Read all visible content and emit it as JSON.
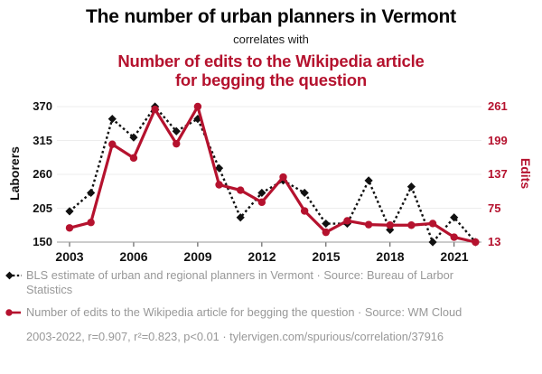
{
  "header": {
    "title": "The number of urban planners in Vermont",
    "connector": "correlates with",
    "subtitle": "Number of edits to the Wikipedia article for begging the question"
  },
  "colors": {
    "red": "#b5122e",
    "black": "#111111",
    "legend_text": "#989898",
    "gridline": "#ededed",
    "axis_line": "#9a9a9a"
  },
  "chart_data": {
    "type": "line",
    "x": [
      2003,
      2004,
      2005,
      2006,
      2007,
      2008,
      2009,
      2010,
      2011,
      2012,
      2013,
      2014,
      2015,
      2016,
      2017,
      2018,
      2019,
      2020,
      2021,
      2022
    ],
    "series": [
      {
        "name": "BLS estimate of urban and regional planners in Vermont",
        "axis": "left",
        "color": "#111111",
        "style": "dashed-diamond",
        "values": [
          200,
          230,
          350,
          320,
          370,
          330,
          350,
          270,
          190,
          230,
          250,
          230,
          180,
          180,
          250,
          170,
          240,
          150,
          190,
          150
        ]
      },
      {
        "name": "Number of edits to the Wikipedia article for begging the question",
        "axis": "right",
        "color": "#b5122e",
        "style": "solid-circle",
        "values": [
          39,
          49,
          192,
          167,
          256,
          193,
          261,
          118,
          108,
          86,
          132,
          70,
          31,
          52,
          45,
          44,
          44,
          47,
          22,
          13
        ]
      }
    ],
    "left_axis": {
      "label": "Laborers",
      "ticks": [
        370,
        315,
        260,
        205,
        150
      ],
      "range": [
        150,
        370
      ]
    },
    "right_axis": {
      "label": "Edits",
      "ticks": [
        261,
        199,
        137,
        75,
        13
      ],
      "range": [
        13,
        261
      ]
    },
    "x_axis": {
      "ticks": [
        2003,
        2006,
        2009,
        2012,
        2015,
        2018,
        2021
      ],
      "range": [
        2003,
        2022
      ]
    },
    "grid": "horizontal",
    "legend_position": "bottom"
  },
  "legend": {
    "items": [
      {
        "marker": "black-diamond-dashed-line",
        "label": "BLS estimate of urban and regional planners in Vermont · Source: Bureau of Larbor Statistics"
      },
      {
        "marker": "red-circle-solid-line",
        "label": "Number of edits to the Wikipedia article for begging the question · Source: WM Cloud"
      }
    ]
  },
  "footer": {
    "text": "2003-2022, r=0.907, r²=0.823, p<0.01 · tylervigen.com/spurious/correlation/37916"
  }
}
